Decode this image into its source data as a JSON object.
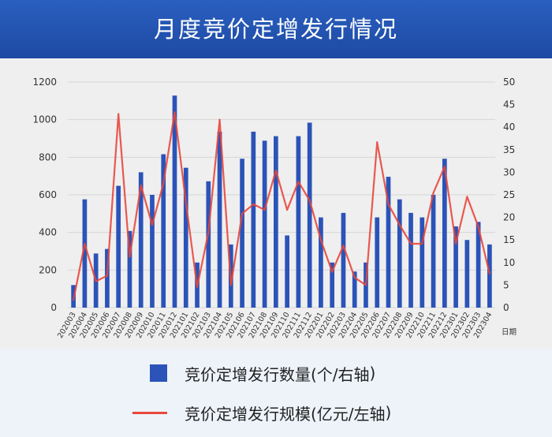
{
  "page": {
    "title": "月度竞价定增发行情况"
  },
  "legend": {
    "bar_label": "竞价定增发行数量(个/右轴",
    "line_label": "竞价定增发行规模(亿元/左轴"
  },
  "colors": {
    "header_bg": "#1f4ea8",
    "bar": "#2b53b8",
    "line": "#e8473c",
    "panel_bg": "#efefef"
  },
  "chart_data": {
    "type": "bar+line",
    "x_unit_label": "日期",
    "categories": [
      "202003",
      "202004",
      "202005",
      "202006",
      "202007",
      "202008",
      "202009",
      "202010",
      "202011",
      "202012",
      "202101",
      "202102",
      "202103",
      "202104",
      "202105",
      "202106",
      "202107",
      "202108",
      "202109",
      "202110",
      "202111",
      "202112",
      "202201",
      "202202",
      "202203",
      "202204",
      "202205",
      "202206",
      "202207",
      "202208",
      "202209",
      "202210",
      "202211",
      "202212",
      "202301",
      "202302",
      "202303",
      "202304"
    ],
    "left_axis": {
      "ylim": [
        0,
        1200
      ],
      "ticks": [
        0,
        200,
        400,
        600,
        800,
        1000,
        1200
      ]
    },
    "right_axis": {
      "ylim": [
        0,
        50
      ],
      "ticks": [
        0,
        5,
        10,
        15,
        20,
        25,
        30,
        35,
        40,
        45,
        50
      ]
    },
    "series": [
      {
        "name": "竞价定增发行数量(个/右轴",
        "kind": "bar",
        "axis": "right",
        "values": [
          5,
          24,
          12,
          13,
          27,
          17,
          30,
          25,
          34,
          47,
          31,
          10,
          28,
          39,
          14,
          33,
          39,
          37,
          38,
          16,
          38,
          41,
          20,
          10,
          21,
          8,
          10,
          20,
          29,
          24,
          21,
          20,
          25,
          33,
          18,
          15,
          19,
          14
        ]
      },
      {
        "name": "竞价定增发行规模(亿元/左轴",
        "kind": "line",
        "axis": "left",
        "values": [
          40,
          340,
          140,
          170,
          1030,
          270,
          650,
          440,
          660,
          1040,
          560,
          110,
          400,
          1000,
          120,
          500,
          550,
          520,
          730,
          520,
          670,
          570,
          360,
          190,
          330,
          160,
          120,
          880,
          550,
          440,
          340,
          340,
          610,
          750,
          340,
          590,
          430,
          180
        ]
      }
    ]
  }
}
